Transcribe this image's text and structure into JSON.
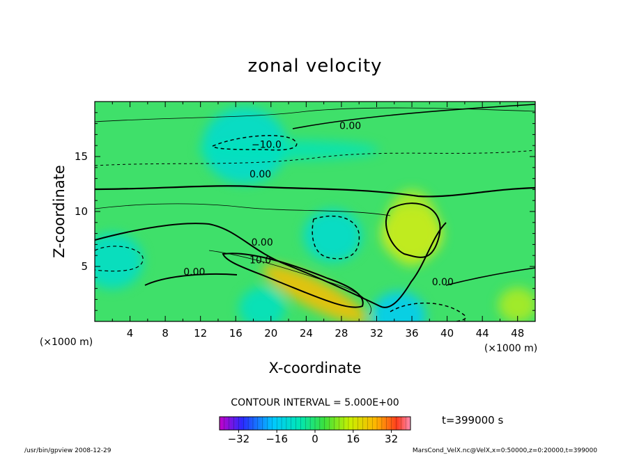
{
  "chart_data": {
    "type": "heatmap",
    "title": "zonal velocity",
    "xlabel": "X-coordinate",
    "ylabel": "Z-coordinate",
    "x_unit": "(×1000 m)",
    "y_unit": "(×1000 m)",
    "xlim": [
      0,
      50
    ],
    "ylim": [
      0,
      20
    ],
    "x_ticks": [
      "4",
      "8",
      "12",
      "16",
      "20",
      "24",
      "28",
      "32",
      "36",
      "40",
      "44",
      "48"
    ],
    "y_ticks": [
      "5",
      "10",
      "15"
    ],
    "contour_interval_text": "CONTOUR INTERVAL = 5.000E+00",
    "time_text": "t=399000 s",
    "colorbar": {
      "range": [
        -40,
        40
      ],
      "tick_labels": [
        "−32",
        "−16",
        "0",
        "16",
        "32"
      ],
      "tick_values": [
        -32,
        -16,
        0,
        16,
        32
      ]
    },
    "contour_labels": [
      {
        "text": "0.00",
        "x": 29,
        "z": 17.5
      },
      {
        "text": "−10.0",
        "x": 19.5,
        "z": 15.8
      },
      {
        "text": "0.00",
        "x": 18.8,
        "z": 13.1
      },
      {
        "text": "0.00",
        "x": 19,
        "z": 6.9
      },
      {
        "text": "10.0",
        "x": 18.8,
        "z": 5.3
      },
      {
        "text": "0.00",
        "x": 11.3,
        "z": 4.2
      },
      {
        "text": "0.00",
        "x": 39.5,
        "z": 3.3
      }
    ],
    "features": [
      {
        "kind": "max",
        "x": 25,
        "z": 2.5,
        "value": 17
      },
      {
        "kind": "max",
        "x": 36,
        "z": 8,
        "value": 12
      },
      {
        "kind": "min",
        "x": 27,
        "z": 7.8,
        "value": -10
      },
      {
        "kind": "min",
        "x": 2,
        "z": 5.5,
        "value": -9
      },
      {
        "kind": "min",
        "x": 17,
        "z": 16,
        "value": -10
      },
      {
        "kind": "min",
        "x": 34.5,
        "z": 0.5,
        "value": -15
      },
      {
        "kind": "min",
        "x": 19,
        "z": 1.2,
        "value": -8
      },
      {
        "kind": "max",
        "x": 48,
        "z": 1.5,
        "value": 8
      }
    ]
  },
  "footer": {
    "left": "/usr/bin/gpview  2008-12-29",
    "right": "MarsCond_VelX.nc@VelX,x=0:50000,z=0:20000,t=399000"
  }
}
